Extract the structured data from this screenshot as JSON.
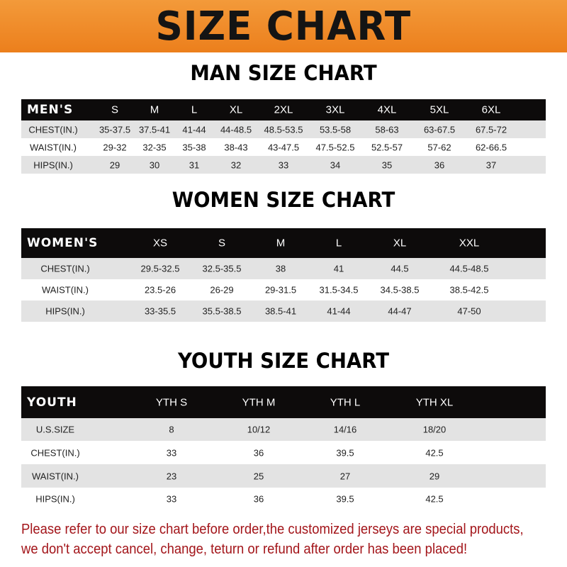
{
  "banner_title": "SIZE CHART",
  "colors": {
    "banner": "#ef8a2a",
    "header_row": "#0d0b0b",
    "striped_row": "#e3e3e3",
    "notice_text": "#a3151a"
  },
  "men": {
    "title": "MAN SIZE CHART",
    "header": [
      "MEN'S",
      "S",
      "M",
      "L",
      "XL",
      "2XL",
      "3XL",
      "4XL",
      "5XL",
      "6XL"
    ],
    "rows": [
      [
        "CHEST(IN.)",
        "35-37.5",
        "37.5-41",
        "41-44",
        "44-48.5",
        "48.5-53.5",
        "53.5-58",
        "58-63",
        "63-67.5",
        "67.5-72"
      ],
      [
        "WAIST(IN.)",
        "29-32",
        "32-35",
        "35-38",
        "38-43",
        "43-47.5",
        "47.5-52.5",
        "52.5-57",
        "57-62",
        "62-66.5"
      ],
      [
        "HIPS(IN.)",
        "29",
        "30",
        "31",
        "32",
        "33",
        "34",
        "35",
        "36",
        "37"
      ]
    ]
  },
  "women": {
    "title": "WOMEN SIZE CHART",
    "header": [
      "WOMEN'S",
      "XS",
      "S",
      "M",
      "L",
      "XL",
      "XXL"
    ],
    "rows": [
      [
        "CHEST(IN.)",
        "29.5-32.5",
        "32.5-35.5",
        "38",
        "41",
        "44.5",
        "44.5-48.5"
      ],
      [
        "WAIST(IN.)",
        "23.5-26",
        "26-29",
        "29-31.5",
        "31.5-34.5",
        "34.5-38.5",
        "38.5-42.5"
      ],
      [
        "HIPS(IN.)",
        "33-35.5",
        "35.5-38.5",
        "38.5-41",
        "41-44",
        "44-47",
        "47-50"
      ]
    ]
  },
  "youth": {
    "title": "YOUTH SIZE CHART",
    "header": [
      "YOUTH",
      "YTH S",
      "YTH M",
      "YTH L",
      "YTH XL"
    ],
    "rows": [
      [
        "U.S.SIZE",
        "8",
        "10/12",
        "14/16",
        "18/20"
      ],
      [
        "CHEST(IN.)",
        "33",
        "36",
        "39.5",
        "42.5"
      ],
      [
        "WAIST(IN.)",
        "23",
        "25",
        "27",
        "29"
      ],
      [
        "HIPS(IN.)",
        "33",
        "36",
        "39.5",
        "42.5"
      ]
    ]
  },
  "notice": {
    "line1": "Please refer to our size chart before order,the customized jerseys are special products,",
    "line2": "we don't accept cancel, change, teturn or refund after order has been placed!"
  }
}
